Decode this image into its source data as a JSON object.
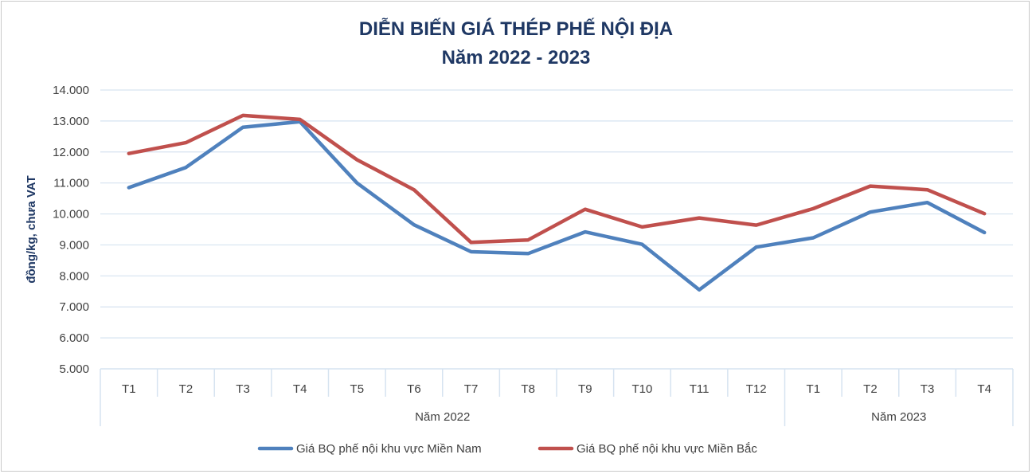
{
  "chart_data": {
    "type": "line",
    "title": "DIỄN BIẾN GIÁ THÉP PHẾ NỘI ĐỊA",
    "subtitle": "Năm 2022 - 2023",
    "ylabel": "đồng/kg, chưa VAT",
    "xlabel": "",
    "ylim": [
      5000,
      14000
    ],
    "yticks": [
      5000,
      6000,
      7000,
      8000,
      9000,
      10000,
      11000,
      12000,
      13000,
      14000
    ],
    "ytick_labels": [
      "5.000",
      "6.000",
      "7.000",
      "8.000",
      "9.000",
      "10.000",
      "11.000",
      "12.000",
      "13.000",
      "14.000"
    ],
    "grid": true,
    "legend_position": "bottom",
    "categories": [
      "T1",
      "T2",
      "T3",
      "T4",
      "T5",
      "T6",
      "T7",
      "T8",
      "T9",
      "T10",
      "T11",
      "T12",
      "T1",
      "T2",
      "T3",
      "T4"
    ],
    "category_groups": [
      {
        "label": "Năm 2022",
        "count": 12
      },
      {
        "label": "Năm 2023",
        "count": 4
      }
    ],
    "series": [
      {
        "name": "Giá BQ phế nội khu vực Miền Nam",
        "color": "#4f81bd",
        "values": [
          10850,
          11500,
          12800,
          12980,
          11000,
          9650,
          8780,
          8720,
          9420,
          9020,
          7550,
          8930,
          9230,
          10060,
          10370,
          9400
        ]
      },
      {
        "name": "Giá BQ phế nội khu vực Miền Bắc",
        "color": "#c0504d",
        "values": [
          11950,
          12300,
          13180,
          13050,
          11750,
          10780,
          9080,
          9160,
          10150,
          9580,
          9870,
          9640,
          10170,
          10900,
          10780,
          10010
        ]
      }
    ]
  },
  "colors": {
    "title": "#1f3864",
    "grid": "#d6e3f0",
    "axis_text": "#404040",
    "border": "#c9c9c9"
  }
}
